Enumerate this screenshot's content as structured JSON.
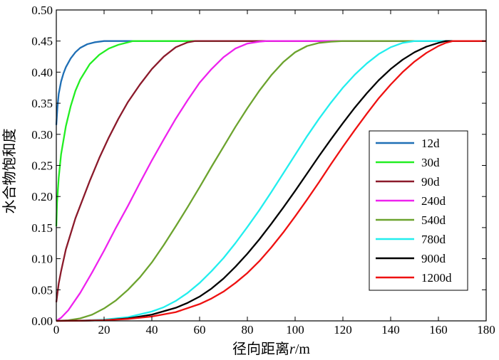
{
  "chart_data": {
    "type": "line",
    "title": "",
    "xlabel": "径向距离r/m",
    "xlabel_parts": {
      "prefix": "径向距离",
      "italic": "r",
      "suffix": "/m"
    },
    "ylabel": "水合物饱和度",
    "xlim": [
      0,
      180
    ],
    "ylim": [
      0,
      0.5
    ],
    "xticks": [
      "0",
      "20",
      "40",
      "60",
      "80",
      "100",
      "120",
      "140",
      "160",
      "180"
    ],
    "yticks": [
      "0.00",
      "0.05",
      "0.10",
      "0.15",
      "0.20",
      "0.25",
      "0.30",
      "0.35",
      "0.40",
      "0.45",
      "0.50"
    ],
    "grid": false,
    "legend_position": "right",
    "series": [
      {
        "name": "12d",
        "color": "#1f6fb5",
        "x": [
          0,
          0.5,
          1,
          2,
          3,
          4,
          6,
          8,
          10,
          13,
          16,
          18,
          20,
          22,
          180
        ],
        "y": [
          0.315,
          0.345,
          0.365,
          0.385,
          0.398,
          0.408,
          0.422,
          0.432,
          0.439,
          0.445,
          0.448,
          0.449,
          0.45,
          0.45,
          0.45
        ]
      },
      {
        "name": "30d",
        "color": "#22ee22",
        "x": [
          0,
          0.3,
          1,
          2,
          4,
          6,
          8,
          10,
          14,
          18,
          22,
          26,
          30,
          32,
          180
        ],
        "y": [
          0.152,
          0.19,
          0.23,
          0.268,
          0.313,
          0.345,
          0.37,
          0.388,
          0.413,
          0.428,
          0.438,
          0.444,
          0.448,
          0.45,
          0.45
        ]
      },
      {
        "name": "90d",
        "color": "#8b1a2b",
        "x": [
          0,
          1,
          2,
          4,
          6,
          8,
          10,
          14,
          18,
          22,
          26,
          30,
          35,
          40,
          45,
          50,
          55,
          58,
          180
        ],
        "y": [
          0.03,
          0.06,
          0.08,
          0.115,
          0.14,
          0.165,
          0.185,
          0.225,
          0.262,
          0.295,
          0.325,
          0.352,
          0.38,
          0.405,
          0.425,
          0.44,
          0.448,
          0.45,
          0.45
        ]
      },
      {
        "name": "240d",
        "color": "#ee22ee",
        "x": [
          0,
          2,
          5,
          10,
          15,
          20,
          25,
          30,
          35,
          40,
          45,
          50,
          55,
          60,
          65,
          70,
          75,
          80,
          85,
          88,
          180
        ],
        "y": [
          0,
          0.005,
          0.017,
          0.045,
          0.078,
          0.113,
          0.15,
          0.185,
          0.222,
          0.258,
          0.292,
          0.325,
          0.355,
          0.383,
          0.405,
          0.424,
          0.438,
          0.446,
          0.449,
          0.45,
          0.45
        ]
      },
      {
        "name": "540d",
        "color": "#6ca32e",
        "x": [
          0,
          5,
          10,
          15,
          20,
          25,
          30,
          35,
          40,
          45,
          50,
          55,
          60,
          65,
          70,
          75,
          80,
          85,
          90,
          95,
          100,
          105,
          110,
          115,
          120,
          123,
          180
        ],
        "y": [
          0,
          0.001,
          0.004,
          0.01,
          0.02,
          0.033,
          0.05,
          0.07,
          0.094,
          0.122,
          0.152,
          0.183,
          0.215,
          0.248,
          0.28,
          0.312,
          0.342,
          0.37,
          0.395,
          0.416,
          0.432,
          0.442,
          0.447,
          0.449,
          0.45,
          0.45,
          0.45
        ]
      },
      {
        "name": "780d",
        "color": "#22eeee",
        "x": [
          0,
          10,
          20,
          30,
          40,
          45,
          50,
          55,
          60,
          65,
          70,
          75,
          80,
          85,
          90,
          95,
          100,
          105,
          110,
          115,
          120,
          125,
          130,
          135,
          140,
          145,
          150,
          152,
          180
        ],
        "y": [
          0,
          0.0005,
          0.002,
          0.006,
          0.015,
          0.022,
          0.032,
          0.045,
          0.061,
          0.08,
          0.101,
          0.125,
          0.151,
          0.178,
          0.207,
          0.237,
          0.267,
          0.297,
          0.325,
          0.351,
          0.375,
          0.396,
          0.414,
          0.429,
          0.44,
          0.447,
          0.45,
          0.45,
          0.45
        ]
      },
      {
        "name": "900d",
        "color": "#000000",
        "x": [
          0,
          10,
          20,
          30,
          40,
          50,
          55,
          60,
          65,
          70,
          75,
          80,
          85,
          90,
          95,
          100,
          105,
          110,
          115,
          120,
          125,
          130,
          135,
          140,
          145,
          150,
          155,
          160,
          163,
          180
        ],
        "y": [
          0,
          0.0003,
          0.001,
          0.004,
          0.01,
          0.021,
          0.029,
          0.039,
          0.052,
          0.068,
          0.087,
          0.108,
          0.131,
          0.156,
          0.182,
          0.209,
          0.237,
          0.265,
          0.292,
          0.318,
          0.343,
          0.366,
          0.387,
          0.405,
          0.42,
          0.432,
          0.441,
          0.447,
          0.45,
          0.45
        ]
      },
      {
        "name": "1200d",
        "color": "#ee1111",
        "x": [
          0,
          10,
          20,
          30,
          40,
          50,
          60,
          65,
          70,
          75,
          80,
          85,
          90,
          95,
          100,
          105,
          110,
          115,
          120,
          125,
          130,
          135,
          140,
          145,
          150,
          155,
          160,
          163,
          166,
          180
        ],
        "y": [
          0,
          0.0002,
          0.001,
          0.003,
          0.007,
          0.014,
          0.027,
          0.036,
          0.047,
          0.061,
          0.077,
          0.096,
          0.118,
          0.142,
          0.168,
          0.195,
          0.223,
          0.252,
          0.28,
          0.307,
          0.333,
          0.358,
          0.38,
          0.4,
          0.417,
          0.431,
          0.442,
          0.447,
          0.45,
          0.45
        ]
      }
    ]
  }
}
